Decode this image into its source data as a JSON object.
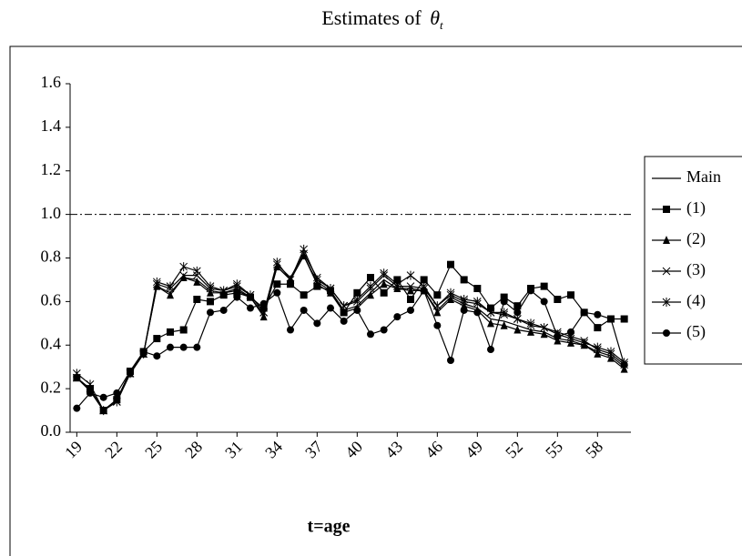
{
  "chart_data": {
    "type": "line",
    "title": "Estimates of",
    "title_symbol": "θ",
    "title_subscript": "t",
    "x_label": "t=age",
    "x": [
      19,
      20,
      21,
      22,
      23,
      24,
      25,
      26,
      27,
      28,
      29,
      30,
      31,
      32,
      33,
      34,
      35,
      36,
      37,
      38,
      39,
      40,
      41,
      42,
      43,
      44,
      45,
      46,
      47,
      48,
      49,
      50,
      51,
      52,
      53,
      54,
      55,
      56,
      57,
      58,
      59,
      60
    ],
    "xlim": [
      18.5,
      60.5
    ],
    "xticks": [
      19,
      22,
      25,
      28,
      31,
      34,
      37,
      40,
      43,
      46,
      49,
      52,
      55,
      58
    ],
    "ylim": [
      0,
      1.6
    ],
    "yticks": [
      {
        "value": 0,
        "label": "0.0"
      },
      0.2,
      0.4,
      0.6,
      0.8,
      {
        "value": 1,
        "label": "1.0"
      },
      1.2,
      1.4,
      1.6
    ],
    "reference_line": 1,
    "legend": "right",
    "series": [
      {
        "name": "Main",
        "color": "#000000",
        "marker": "none",
        "values": [
          0.25,
          0.19,
          0.1,
          0.15,
          0.27,
          0.36,
          0.67,
          0.64,
          0.71,
          0.7,
          0.65,
          0.64,
          0.66,
          0.62,
          0.54,
          0.76,
          0.7,
          0.81,
          0.69,
          0.65,
          0.56,
          0.58,
          0.64,
          0.7,
          0.66,
          0.66,
          0.65,
          0.56,
          0.62,
          0.59,
          0.57,
          0.52,
          0.51,
          0.49,
          0.47,
          0.46,
          0.43,
          0.42,
          0.4,
          0.37,
          0.35,
          0.3
        ]
      },
      {
        "name": "(1)",
        "color": "#000000",
        "marker": "square",
        "values": [
          0.25,
          0.2,
          0.1,
          0.15,
          0.28,
          0.37,
          0.43,
          0.46,
          0.47,
          0.61,
          0.6,
          0.63,
          0.64,
          0.62,
          0.57,
          0.68,
          0.68,
          0.63,
          0.67,
          0.65,
          0.55,
          0.64,
          0.71,
          0.64,
          0.7,
          0.61,
          0.7,
          0.63,
          0.77,
          0.7,
          0.66,
          0.57,
          0.62,
          0.58,
          0.66,
          0.67,
          0.61,
          0.63,
          0.55,
          0.48,
          0.52,
          0.52
        ]
      },
      {
        "name": "(2)",
        "color": "#000000",
        "marker": "triangle",
        "values": [
          0.25,
          0.19,
          0.1,
          0.15,
          0.27,
          0.36,
          0.67,
          0.63,
          0.71,
          0.69,
          0.64,
          0.64,
          0.65,
          0.62,
          0.53,
          0.76,
          0.7,
          0.81,
          0.68,
          0.64,
          0.55,
          0.57,
          0.63,
          0.68,
          0.66,
          0.65,
          0.65,
          0.55,
          0.61,
          0.58,
          0.56,
          0.5,
          0.49,
          0.47,
          0.46,
          0.45,
          0.42,
          0.41,
          0.4,
          0.36,
          0.34,
          0.29
        ]
      },
      {
        "name": "(3)",
        "color": "#000000",
        "marker": "x",
        "values": [
          0.25,
          0.2,
          0.1,
          0.14,
          0.27,
          0.36,
          0.68,
          0.66,
          0.72,
          0.72,
          0.66,
          0.65,
          0.67,
          0.63,
          0.55,
          0.77,
          0.71,
          0.82,
          0.71,
          0.66,
          0.58,
          0.6,
          0.66,
          0.72,
          0.67,
          0.67,
          0.66,
          0.58,
          0.63,
          0.6,
          0.59,
          0.55,
          0.54,
          0.52,
          0.49,
          0.48,
          0.46,
          0.44,
          0.42,
          0.38,
          0.36,
          0.31
        ]
      },
      {
        "name": "(4)",
        "color": "#000000",
        "marker": "star",
        "values": [
          0.27,
          0.22,
          0.1,
          0.14,
          0.27,
          0.36,
          0.69,
          0.67,
          0.76,
          0.74,
          0.67,
          0.65,
          0.68,
          0.63,
          0.55,
          0.78,
          0.7,
          0.84,
          0.7,
          0.66,
          0.58,
          0.61,
          0.67,
          0.73,
          0.68,
          0.72,
          0.67,
          0.58,
          0.64,
          0.61,
          0.6,
          0.55,
          0.55,
          0.52,
          0.5,
          0.48,
          0.45,
          0.43,
          0.41,
          0.39,
          0.37,
          0.32
        ]
      },
      {
        "name": "(5)",
        "color": "#000000",
        "marker": "circle",
        "values": [
          0.11,
          0.18,
          0.16,
          0.18,
          0.28,
          0.37,
          0.35,
          0.39,
          0.39,
          0.39,
          0.55,
          0.56,
          0.62,
          0.57,
          0.59,
          0.64,
          0.47,
          0.56,
          0.5,
          0.57,
          0.51,
          0.56,
          0.45,
          0.47,
          0.53,
          0.56,
          0.65,
          0.49,
          0.33,
          0.56,
          0.55,
          0.38,
          0.6,
          0.55,
          0.65,
          0.6,
          0.44,
          0.46,
          0.55,
          0.54,
          0.52,
          0.31
        ]
      }
    ]
  }
}
